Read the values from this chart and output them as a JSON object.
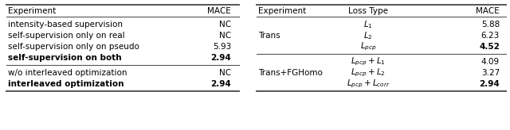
{
  "left_table": {
    "headers": [
      "Experiment",
      "MACE"
    ],
    "groups": [
      {
        "rows": [
          [
            "intensity-based supervision",
            "NC"
          ],
          [
            "self-supervision only on real",
            "NC"
          ],
          [
            "self-supervision only on pseudo",
            "5.93"
          ],
          [
            "self-supervision on both",
            "2.94"
          ]
        ],
        "bold": [
          false,
          false,
          false,
          true
        ]
      },
      {
        "rows": [
          [
            "w/o interleaved optimization",
            "NC"
          ],
          [
            "interleaved optimization",
            "2.94"
          ]
        ],
        "bold": [
          false,
          true
        ]
      }
    ]
  },
  "right_table": {
    "headers": [
      "Experiment",
      "Loss Type",
      "MACE"
    ],
    "groups": [
      {
        "experiment": "Trans",
        "rows": [
          [
            "$L_1$",
            "5.88"
          ],
          [
            "$L_2$",
            "6.23"
          ],
          [
            "$L_{pcp}$",
            "4.52"
          ]
        ],
        "bold": [
          false,
          false,
          true
        ]
      },
      {
        "experiment": "Trans+FGHomo",
        "rows": [
          [
            "$L_{pcp} + L_1$",
            "4.09"
          ],
          [
            "$L_{pcp} + L_2$",
            "3.27"
          ],
          [
            "$L_{pcp} + L_{corr}$",
            "2.94"
          ]
        ],
        "bold": [
          false,
          false,
          true
        ]
      }
    ]
  },
  "bg_color": "#ffffff",
  "line_color": "#555555",
  "font_size": 7.5
}
